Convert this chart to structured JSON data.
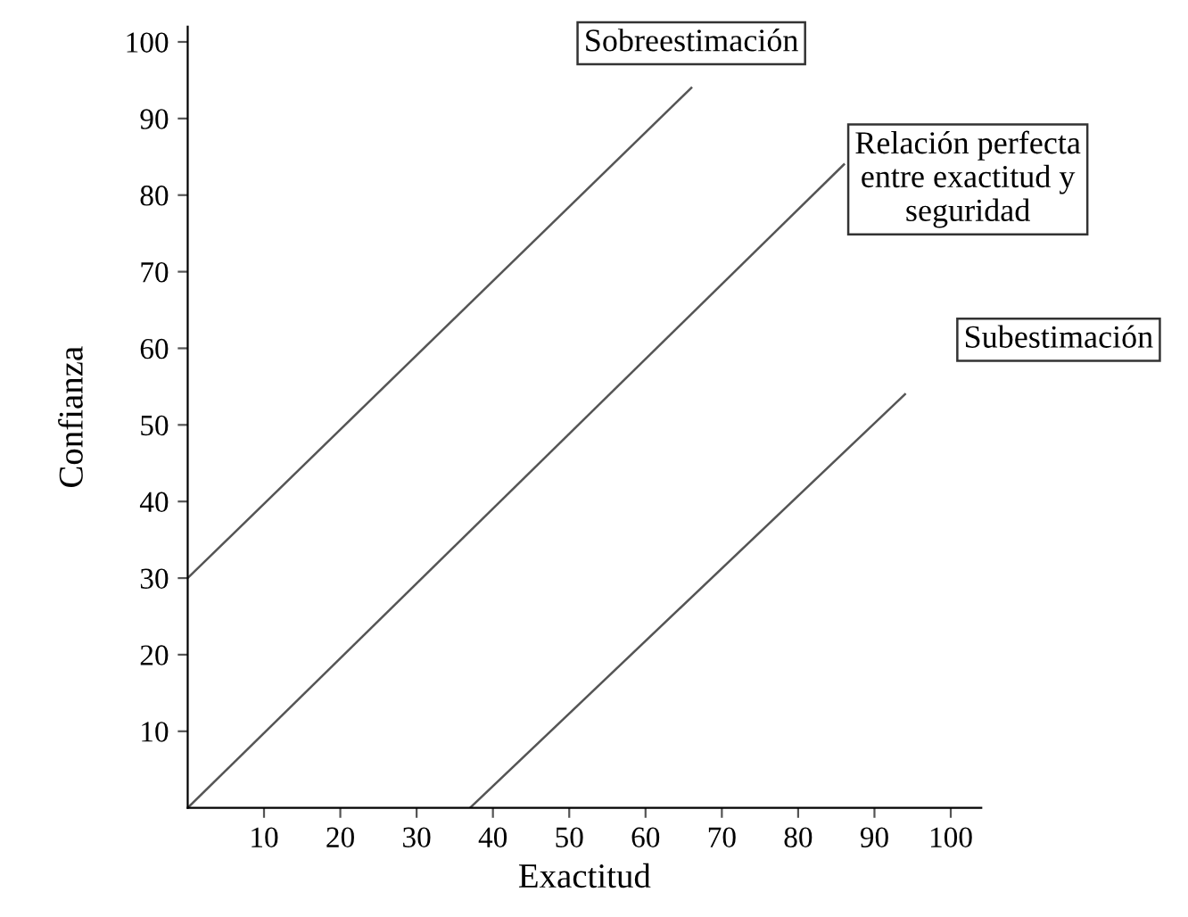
{
  "chart_data": {
    "type": "line",
    "xlabel": "Exactitud",
    "ylabel": "Confianza",
    "xlim": [
      0,
      104
    ],
    "ylim": [
      0,
      102
    ],
    "xticks": [
      10,
      20,
      30,
      40,
      50,
      60,
      70,
      80,
      90,
      100
    ],
    "yticks": [
      10,
      20,
      30,
      40,
      50,
      60,
      70,
      80,
      90,
      100
    ],
    "grid": false,
    "legend": false,
    "marker": "none",
    "line_style": "solid",
    "series": [
      {
        "name": "Sobreestimación",
        "color": "#555555",
        "x": [
          0,
          66
        ],
        "values": [
          30,
          94
        ]
      },
      {
        "name": "Relación perfecta entre exactitud y seguridad",
        "color": "#555555",
        "x": [
          0,
          86
        ],
        "values": [
          0,
          84
        ]
      },
      {
        "name": "Subestimación",
        "color": "#555555",
        "x": [
          37,
          94
        ],
        "values": [
          0,
          54
        ]
      }
    ]
  }
}
